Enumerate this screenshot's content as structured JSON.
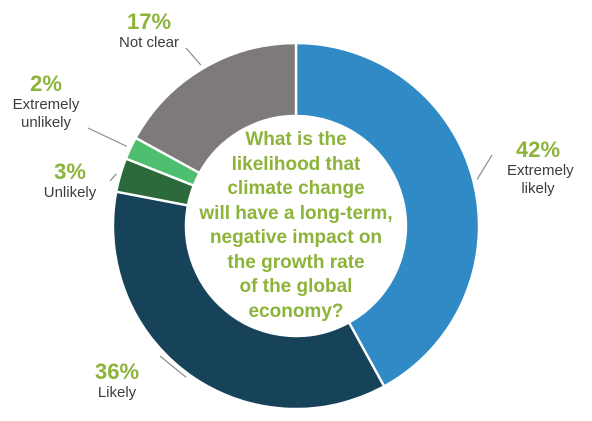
{
  "chart_data": {
    "type": "pie",
    "title": "What is the likelihood that climate change will have a long-term, negative impact on the growth rate of the global economy?",
    "slices": [
      {
        "label": "Extremely likely",
        "percent_label": "42%",
        "value": 42,
        "color": "#2f8ac5"
      },
      {
        "label": "Likely",
        "percent_label": "36%",
        "value": 36,
        "color": "#17435a"
      },
      {
        "label": "Unlikely",
        "percent_label": "3%",
        "value": 3,
        "color": "#2c6a3b"
      },
      {
        "label": "Extremely unlikely",
        "percent_label": "2%",
        "value": 2,
        "color": "#4dbf6e"
      },
      {
        "label": "Not clear",
        "percent_label": "17%",
        "value": 17,
        "color": "#7d7a79"
      }
    ],
    "center_lines": [
      "What is the",
      "likelihood that",
      "climate change",
      "will have a long-term,",
      "negative impact on",
      "the growth rate",
      "of the global",
      "economy?"
    ]
  }
}
